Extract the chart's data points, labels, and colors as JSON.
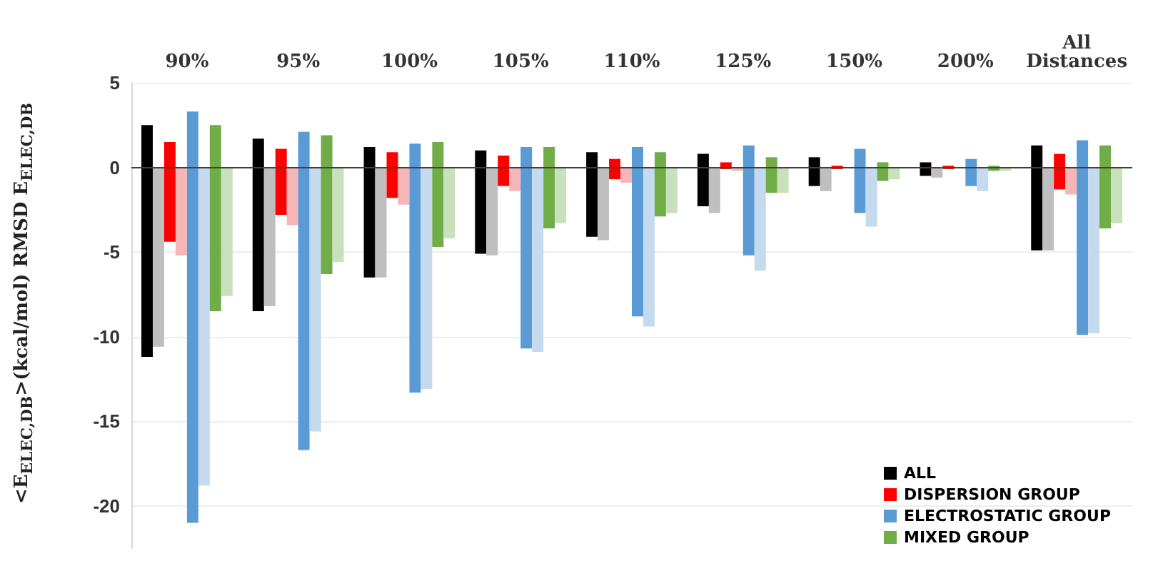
{
  "chart_data": {
    "type": "bar",
    "categories": [
      "90%",
      "95%",
      "100%",
      "105%",
      "110%",
      "125%",
      "150%",
      "200%",
      "All Distances"
    ],
    "ylabel": "<E$_{ELEC,DB}$>(kcal/mol)    RMSD E$_{ELEC,DB}$",
    "ylim": [
      -22.5,
      5
    ],
    "yticks": [
      -20,
      -15,
      -10,
      -5,
      0,
      5
    ],
    "grid": "y",
    "legend": "bottom right",
    "ref_lines": [
      {
        "axis": "y",
        "value": 0,
        "color": "#404040"
      }
    ],
    "series": [
      {
        "name": "ALL",
        "color": "#000000",
        "base": [
          -11.2,
          -8.5,
          -6.5,
          -5.1,
          -4.1,
          -2.3,
          -1.1,
          -0.5,
          -4.9
        ],
        "values": [
          13.7,
          10.2,
          7.7,
          6.1,
          5.0,
          3.1,
          1.7,
          0.8,
          6.2
        ]
      },
      {
        "color": "#bfbfbf",
        "values": [
          -10.6,
          -8.2,
          -6.5,
          -5.2,
          -4.3,
          -2.7,
          -1.4,
          -0.6,
          -4.9
        ]
      },
      {
        "name": "DISPERSION GROUP",
        "color": "#ff0000",
        "base": [
          -4.4,
          -2.8,
          -1.8,
          -1.1,
          -0.7,
          -0.1,
          -0.1,
          -0.1,
          -1.3
        ],
        "values": [
          5.9,
          3.9,
          2.7,
          1.8,
          1.2,
          0.4,
          0.2,
          0.2,
          2.1
        ]
      },
      {
        "color": "#f4b6b6",
        "values": [
          -5.2,
          -3.4,
          -2.2,
          -1.4,
          -0.9,
          -0.2,
          null,
          null,
          -1.6
        ]
      },
      {
        "name": "ELECTROSTATIC GROUP",
        "color": "#5b9bd5",
        "base": [
          -21.0,
          -16.7,
          -13.3,
          -10.7,
          -8.8,
          -5.2,
          -2.7,
          -1.1,
          -9.9
        ],
        "values": [
          24.3,
          18.8,
          14.7,
          11.9,
          10.0,
          6.5,
          3.8,
          1.6,
          11.5
        ]
      },
      {
        "color": "#c5d9ef",
        "values": [
          -18.8,
          -15.6,
          -13.1,
          -10.9,
          -9.4,
          -6.1,
          -3.5,
          -1.4,
          -9.8
        ]
      },
      {
        "name": "MIXED GROUP",
        "color": "#70ad47",
        "base": [
          -8.5,
          -6.3,
          -4.7,
          -3.6,
          -2.9,
          -1.5,
          -0.8,
          -0.2,
          -3.6
        ],
        "values": [
          11.0,
          8.2,
          6.2,
          4.8,
          3.8,
          2.1,
          1.1,
          0.3,
          4.9
        ]
      },
      {
        "color": "#c9e0bc",
        "values": [
          -7.6,
          -5.6,
          -4.2,
          -3.3,
          -2.7,
          -1.5,
          -0.7,
          -0.2,
          -3.3
        ]
      }
    ]
  }
}
